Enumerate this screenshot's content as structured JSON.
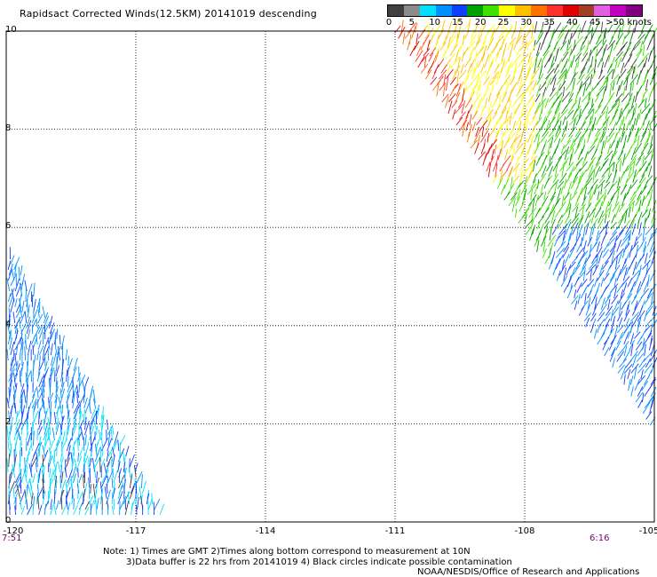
{
  "title": "Rapidsact Corrected Winds(12.5KM) 20141019 descending",
  "colorbar": {
    "colors": [
      "#404040",
      "#8c8c8c",
      "#00e0ff",
      "#0090ff",
      "#1040ff",
      "#00a000",
      "#40e000",
      "#ffff00",
      "#ffc000",
      "#ff7000",
      "#ff3030",
      "#e00000",
      "#a04020",
      "#e060e0",
      "#c000c0",
      "#800080"
    ],
    "labels": [
      "0",
      "5",
      "10",
      "15",
      "20",
      "25",
      "30",
      "35",
      "40",
      "45",
      ">50 knots"
    ]
  },
  "axes": {
    "y_ticks": [
      "10",
      "8",
      "6",
      "4",
      "2",
      "0"
    ],
    "x_ticks": [
      "-120",
      "-117",
      "-114",
      "-111",
      "-108",
      "-105"
    ],
    "xlim": [
      -120,
      -105
    ],
    "ylim": [
      0,
      10
    ]
  },
  "times": {
    "left": "7:51",
    "right": "6:16"
  },
  "notes": {
    "line1": "Note: 1) Times are GMT 2)Times along bottom correspond to measurement at 10N",
    "line2": "3)Data buffer is 22 hrs from 20141019 4) Black circles indicate possible contamination",
    "line3": "NOAA/NESDIS/Office of Research and Applications"
  }
}
